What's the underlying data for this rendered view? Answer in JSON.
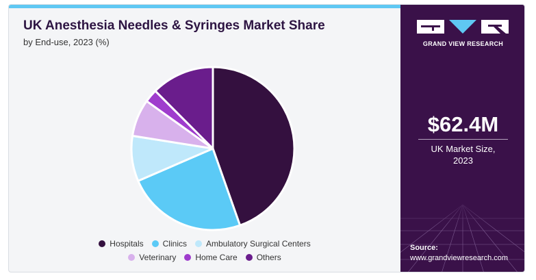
{
  "header": {
    "title": "UK Anesthesia Needles & Syringes Market Share",
    "subtitle": "by End-use, 2023 (%)"
  },
  "chart_data": {
    "type": "pie",
    "categories": [
      "Hospitals",
      "Clinics",
      "Ambulatory Surgical Centers",
      "Veterinary",
      "Home Care",
      "Others"
    ],
    "values": [
      44.6,
      23.9,
      9.0,
      7.4,
      2.6,
      12.5
    ],
    "colors": [
      "#34103f",
      "#5bcaf6",
      "#bfe8fb",
      "#d8b1ec",
      "#9f3ccd",
      "#6a1d8c"
    ],
    "legend_position": "bottom"
  },
  "legend": [
    {
      "label": "Hospitals",
      "color": "#34103f"
    },
    {
      "label": "Clinics",
      "color": "#5bcaf6"
    },
    {
      "label": "Ambulatory Surgical Centers",
      "color": "#bfe8fb"
    },
    {
      "label": "Veterinary",
      "color": "#d8b1ec"
    },
    {
      "label": "Home Care",
      "color": "#9f3ccd"
    },
    {
      "label": "Others",
      "color": "#6a1d8c"
    }
  ],
  "sidebar": {
    "brand": "GRAND VIEW RESEARCH",
    "value": "$62.4M",
    "value_label_1": "UK Market Size,",
    "value_label_2": "2023",
    "source_title": "Source:",
    "source_url": "www.grandviewresearch.com"
  }
}
